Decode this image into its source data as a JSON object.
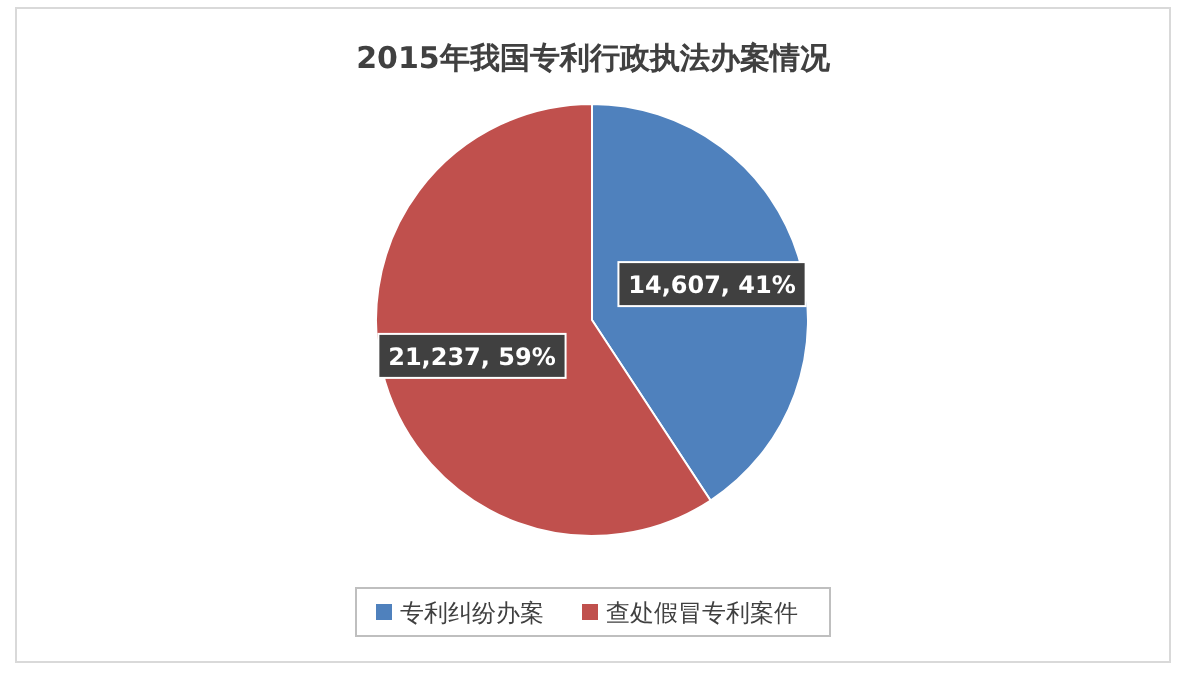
{
  "chart_data": {
    "type": "pie",
    "title": "2015年我国专利行政执法办案情况",
    "categories": [
      "专利纠纷办案",
      "查处假冒专利案件"
    ],
    "values": [
      14607,
      21237
    ],
    "colors": [
      "#4f81bd",
      "#c0504d"
    ],
    "value_labels": [
      "14,607, 41%",
      "21,237, 59%"
    ],
    "legend": "bottom"
  }
}
